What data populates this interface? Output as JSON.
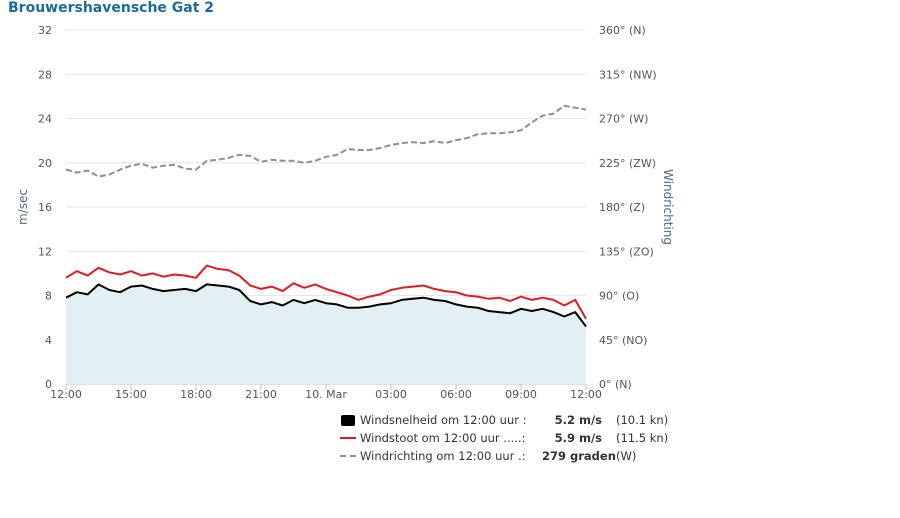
{
  "title": "Brouwershavensche Gat 2",
  "chart_data": {
    "type": "line",
    "title": "Brouwershavensche Gat 2",
    "ylabel": "m/sec",
    "y2label": "Windrichting",
    "ylim": [
      0,
      32
    ],
    "y2lim": [
      0,
      360
    ],
    "yticks": [
      "0",
      "4",
      "8",
      "12",
      "16",
      "20",
      "24",
      "28",
      "32"
    ],
    "y2ticks": [
      "0° (N)",
      "45° (NO)",
      "90° (O)",
      "135° (ZO)",
      "180° (Z)",
      "225° (ZW)",
      "270° (W)",
      "315° (NW)",
      "360° (N)"
    ],
    "xlim": [
      0,
      24
    ],
    "xticks": [
      {
        "x": 0,
        "label": "12:00"
      },
      {
        "x": 3,
        "label": "15:00"
      },
      {
        "x": 6,
        "label": "18:00"
      },
      {
        "x": 9,
        "label": "21:00"
      },
      {
        "x": 12,
        "label": "10. Mar"
      },
      {
        "x": 15,
        "label": "03:00"
      },
      {
        "x": 18,
        "label": "06:00"
      },
      {
        "x": 21,
        "label": "09:00"
      },
      {
        "x": 24,
        "label": "12:00"
      }
    ],
    "grid": true,
    "legend_position": "bottom",
    "series": [
      {
        "name": "Windsnelheid",
        "axis": "left",
        "style": "area",
        "color": "#000000",
        "fill": "#e3f0f3",
        "x": [
          0,
          0.5,
          1,
          1.5,
          2,
          2.5,
          3,
          3.5,
          4,
          4.5,
          5,
          5.5,
          6,
          6.5,
          7,
          7.5,
          8,
          8.5,
          9,
          9.5,
          10,
          10.5,
          11,
          11.5,
          12,
          12.5,
          13,
          13.5,
          14,
          14.5,
          15,
          15.5,
          16,
          16.5,
          17,
          17.5,
          18,
          18.5,
          19,
          19.5,
          20,
          20.5,
          21,
          21.5,
          22,
          22.5,
          23,
          23.5,
          24
        ],
        "values": [
          7.8,
          8.3,
          8.1,
          9.0,
          8.5,
          8.3,
          8.8,
          8.9,
          8.6,
          8.4,
          8.5,
          8.6,
          8.4,
          9.0,
          8.9,
          8.8,
          8.5,
          7.5,
          7.2,
          7.4,
          7.1,
          7.6,
          7.3,
          7.6,
          7.3,
          7.2,
          6.9,
          6.9,
          7.0,
          7.2,
          7.3,
          7.6,
          7.7,
          7.8,
          7.6,
          7.5,
          7.2,
          7.0,
          6.9,
          6.6,
          6.5,
          6.4,
          6.8,
          6.6,
          6.8,
          6.5,
          6.1,
          6.5,
          5.2
        ]
      },
      {
        "name": "Windstoot",
        "axis": "left",
        "style": "line",
        "color": "#e4191e",
        "x": [
          0,
          0.5,
          1,
          1.5,
          2,
          2.5,
          3,
          3.5,
          4,
          4.5,
          5,
          5.5,
          6,
          6.5,
          7,
          7.5,
          8,
          8.5,
          9,
          9.5,
          10,
          10.5,
          11,
          11.5,
          12,
          12.5,
          13,
          13.5,
          14,
          14.5,
          15,
          15.5,
          16,
          16.5,
          17,
          17.5,
          18,
          18.5,
          19,
          19.5,
          20,
          20.5,
          21,
          21.5,
          22,
          22.5,
          23,
          23.5,
          24
        ],
        "values": [
          9.6,
          10.2,
          9.8,
          10.5,
          10.1,
          9.9,
          10.2,
          9.8,
          10.0,
          9.7,
          9.9,
          9.8,
          9.6,
          10.7,
          10.4,
          10.3,
          9.8,
          8.9,
          8.6,
          8.8,
          8.4,
          9.1,
          8.7,
          9.0,
          8.6,
          8.3,
          8.0,
          7.6,
          7.9,
          8.1,
          8.5,
          8.7,
          8.8,
          8.9,
          8.6,
          8.4,
          8.3,
          8.0,
          7.9,
          7.7,
          7.8,
          7.5,
          7.9,
          7.6,
          7.8,
          7.6,
          7.1,
          7.6,
          5.9
        ]
      },
      {
        "name": "Windrichting",
        "axis": "right",
        "style": "dashed",
        "color": "#8f8f8f",
        "x": [
          0,
          0.5,
          1,
          1.5,
          2,
          2.5,
          3,
          3.5,
          4,
          4.5,
          5,
          5.5,
          6,
          6.5,
          7,
          7.5,
          8,
          8.5,
          9,
          9.5,
          10,
          10.5,
          11,
          11.5,
          12,
          12.5,
          13,
          13.5,
          14,
          14.5,
          15,
          15.5,
          16,
          16.5,
          17,
          17.5,
          18,
          18.5,
          19,
          19.5,
          20,
          20.5,
          21,
          21.5,
          22,
          22.5,
          23,
          23.5,
          24
        ],
        "values": [
          218,
          215,
          217,
          211,
          213,
          218,
          222,
          224,
          220,
          222,
          223,
          219,
          218,
          227,
          228,
          230,
          233,
          232,
          226,
          228,
          227,
          227,
          225,
          227,
          231,
          233,
          239,
          238,
          238,
          240,
          243,
          245,
          246,
          245,
          247,
          245,
          248,
          250,
          254,
          255,
          255,
          256,
          258,
          266,
          273,
          275,
          283,
          281,
          279
        ]
      }
    ]
  },
  "legend": {
    "items": [
      {
        "label": "Windsnelheid om 12:00 uur :",
        "value": "5.2 m/s",
        "extra": "(10.1 kn)"
      },
      {
        "label": "Windstoot om 12:00 uur .....:",
        "value": "5.9 m/s",
        "extra": "(11.5 kn)"
      },
      {
        "label": "Windrichting om 12:00 uur .:",
        "value": "279 graden",
        "extra": "(W)"
      }
    ]
  }
}
